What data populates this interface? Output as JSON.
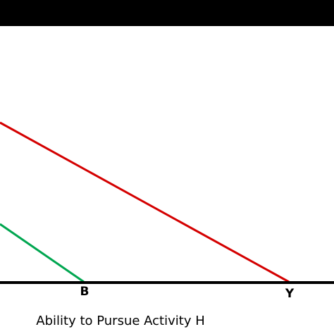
{
  "diagram": {
    "axis_points": [
      "B",
      "Y"
    ],
    "x_axis_label": "Ability to Pursue Activity H"
  }
}
